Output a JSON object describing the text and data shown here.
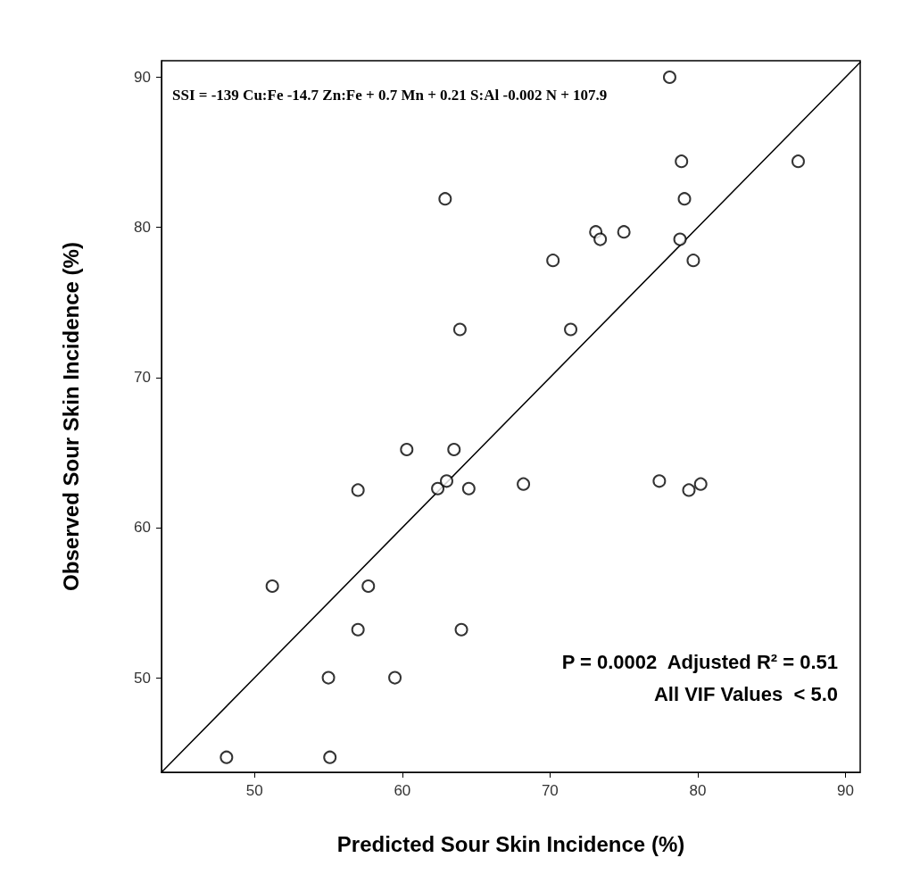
{
  "chart_data": {
    "type": "scatter",
    "xlabel": "Predicted Sour Skin Incidence (%)",
    "ylabel": "Observed Sour Skin Incidence (%)",
    "annotations": [
      "SSI = -139 Cu:Fe -14.7 Zn:Fe + 0.7 Mn + 0.21 S:Al -0.002 N + 107.9",
      "P = 0.0002  Adjusted R² = 0.51",
      "All VIF Values  < 5.0"
    ],
    "series": [
      {
        "color": "#000000",
        "marker": "circle",
        "x": [
          78.1,
          78.9,
          86.8,
          62.9,
          79.1,
          73.1,
          73.4,
          75.0,
          78.8,
          70.2,
          79.7,
          63.9,
          71.4,
          60.3,
          63.5,
          57.0,
          62.4,
          63.0,
          64.5,
          68.2,
          77.4,
          79.4,
          80.2,
          51.2,
          57.7,
          57.0,
          64.0,
          55.0,
          59.5,
          48.1,
          55.1
        ],
        "values": [
          90.0,
          84.4,
          84.4,
          81.9,
          81.9,
          79.7,
          79.2,
          79.7,
          79.2,
          77.8,
          77.8,
          73.2,
          73.2,
          65.2,
          65.2,
          62.5,
          62.6,
          63.1,
          62.6,
          62.9,
          63.1,
          62.5,
          62.9,
          56.1,
          56.1,
          53.2,
          53.2,
          50.0,
          50.0,
          44.7,
          44.7
        ]
      },
      {
        "type": "line",
        "color": "#000000",
        "marker": "none",
        "line_style": "solid",
        "x": [
          43.7,
          91
        ],
        "values": [
          43.7,
          91
        ]
      }
    ],
    "xlim": [
      43.7,
      91
    ],
    "ylim": [
      43.7,
      91.1
    ],
    "xticks": [
      50,
      60,
      70,
      80,
      90
    ],
    "yticks": [
      50,
      60,
      70,
      80,
      90
    ],
    "grid": false
  }
}
